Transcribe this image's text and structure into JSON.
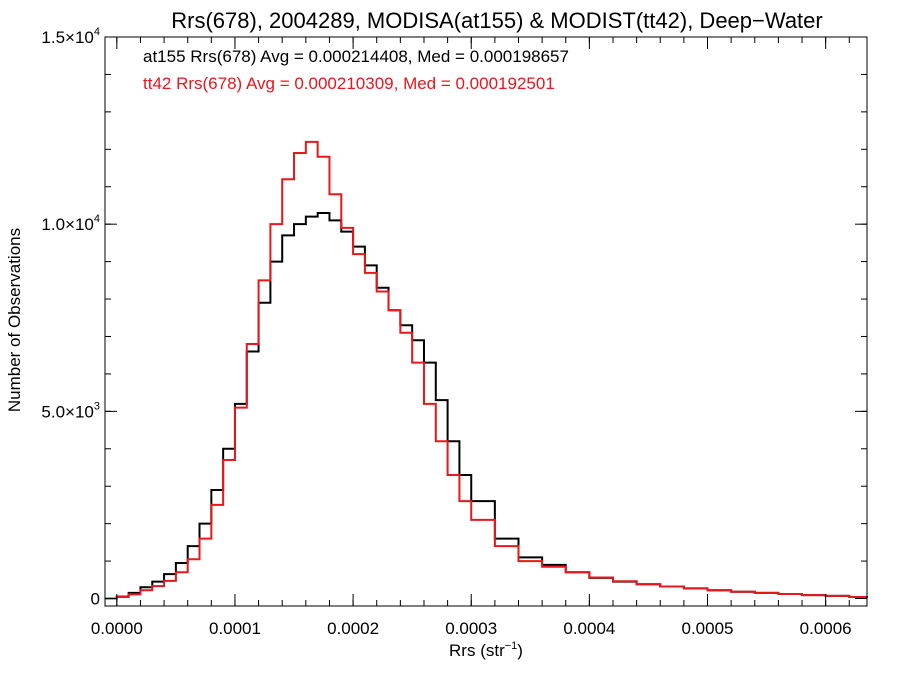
{
  "chart_data": {
    "type": "line",
    "step": true,
    "title": "Rrs(678), 2004289, MODISA(at155) & MODIST(tt42), Deep−Water",
    "xlabel": "Rrs (str⁻¹)",
    "ylabel": "Number of Observations",
    "xlim": [
      -1e-05,
      0.000635
    ],
    "ylim": [
      -200,
      15000
    ],
    "grid": false,
    "legend_placement": "top-left",
    "x_ticks": [
      {
        "value": 0.0,
        "label": "0.0000"
      },
      {
        "value": 0.0001,
        "label": "0.0001"
      },
      {
        "value": 0.0002,
        "label": "0.0002"
      },
      {
        "value": 0.0003,
        "label": "0.0003"
      },
      {
        "value": 0.0004,
        "label": "0.0004"
      },
      {
        "value": 0.0005,
        "label": "0.0005"
      },
      {
        "value": 0.0006,
        "label": "0.0006"
      }
    ],
    "y_ticks": [
      {
        "value": 0,
        "mant": "0",
        "exp": ""
      },
      {
        "value": 5000,
        "mant": "5.0×10",
        "exp": "3"
      },
      {
        "value": 10000,
        "mant": "1.0×10",
        "exp": "4"
      },
      {
        "value": 15000,
        "mant": "1.5×10",
        "exp": "4"
      }
    ],
    "x": [
      -1e-05,
      0.0,
      1e-05,
      2e-05,
      3e-05,
      4e-05,
      5e-05,
      6e-05,
      7e-05,
      8e-05,
      9e-05,
      0.0001,
      0.00011,
      0.00012,
      0.00013,
      0.00014,
      0.00015,
      0.00016,
      0.00017,
      0.00018,
      0.00019,
      0.0002,
      0.00021,
      0.00022,
      0.00023,
      0.00024,
      0.00025,
      0.00026,
      0.00027,
      0.00028,
      0.00029,
      0.0003,
      0.00032,
      0.00034,
      0.00036,
      0.00038,
      0.0004,
      0.00042,
      0.00044,
      0.00046,
      0.00048,
      0.0005,
      0.00052,
      0.00054,
      0.00056,
      0.00058,
      0.0006,
      0.00062,
      0.000635
    ],
    "series": [
      {
        "name": "at155",
        "color": "#000000",
        "values": [
          0,
          50,
          150,
          300,
          450,
          650,
          950,
          1400,
          2000,
          2900,
          4000,
          5200,
          6600,
          7900,
          9000,
          9700,
          10000,
          10200,
          10300,
          10100,
          9800,
          9400,
          8900,
          8300,
          7700,
          7300,
          6900,
          6300,
          5300,
          4200,
          3300,
          2600,
          1600,
          1100,
          900,
          700,
          550,
          450,
          380,
          320,
          270,
          220,
          180,
          150,
          120,
          90,
          70,
          40,
          20
        ]
      },
      {
        "name": "tt42",
        "color": "#e8171c",
        "values": [
          0,
          40,
          110,
          220,
          330,
          470,
          700,
          1050,
          1600,
          2500,
          3700,
          5100,
          6800,
          8500,
          10000,
          11200,
          11900,
          12200,
          11800,
          10800,
          9900,
          9200,
          8700,
          8200,
          7700,
          7100,
          6300,
          5200,
          4200,
          3300,
          2600,
          2100,
          1400,
          1000,
          850,
          700,
          560,
          460,
          380,
          320,
          270,
          220,
          180,
          150,
          120,
          90,
          70,
          40,
          20
        ]
      }
    ],
    "legend": [
      {
        "series": "at155",
        "text": "at155 Rrs(678) Avg = 0.000214408, Med = 0.000198657",
        "color": "#000000"
      },
      {
        "series": "tt42",
        "text": "tt42 Rrs(678) Avg = 0.000210309, Med = 0.000192501",
        "color": "#e8171c"
      }
    ]
  }
}
